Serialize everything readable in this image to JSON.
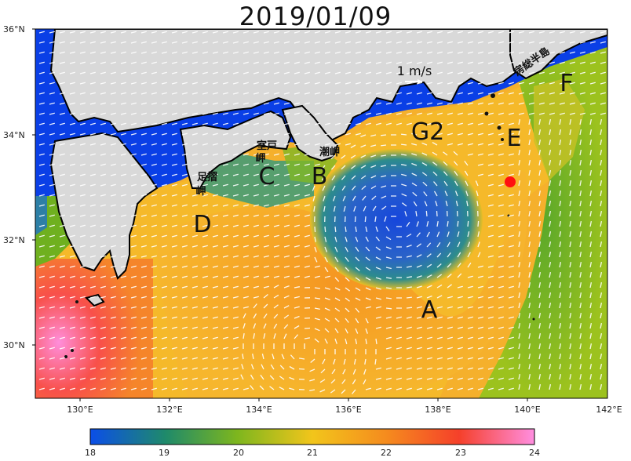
{
  "title": "2019/01/09",
  "scale": {
    "label": "1 m/s"
  },
  "axes": {
    "lat_labels": [
      "36°N",
      "34°N",
      "32°N",
      "30°N"
    ],
    "lon_labels": [
      "130°E",
      "132°E",
      "134°E",
      "136°E",
      "138°E",
      "140°E",
      "142°E"
    ]
  },
  "region_labels": [
    {
      "id": "A",
      "text": "A"
    },
    {
      "id": "B",
      "text": "B"
    },
    {
      "id": "C",
      "text": "C"
    },
    {
      "id": "D",
      "text": "D"
    },
    {
      "id": "E",
      "text": "E"
    },
    {
      "id": "F",
      "text": "F"
    },
    {
      "id": "G2",
      "text": "G2"
    }
  ],
  "place_names": {
    "muroto": "室戸岬",
    "ashizuri": "足摺岬",
    "shiono": "潮岬",
    "boso": "房総半島"
  },
  "colorbar": {
    "min": 18,
    "max": 24,
    "ticks": [
      "18",
      "19",
      "20",
      "21",
      "22",
      "23",
      "24"
    ],
    "colors": [
      "#0b4ee8",
      "#1f8a6a",
      "#7db61e",
      "#f2c51b",
      "#f58a1e",
      "#f5402a",
      "#ff8ee0"
    ]
  },
  "marker": {
    "color": "#ff1010"
  },
  "colors": {
    "land": "#d9d9d9",
    "coastal_water": "#0a3fe6",
    "warm_water": "#f7b52e",
    "cold_eddy": "#1846d8"
  }
}
